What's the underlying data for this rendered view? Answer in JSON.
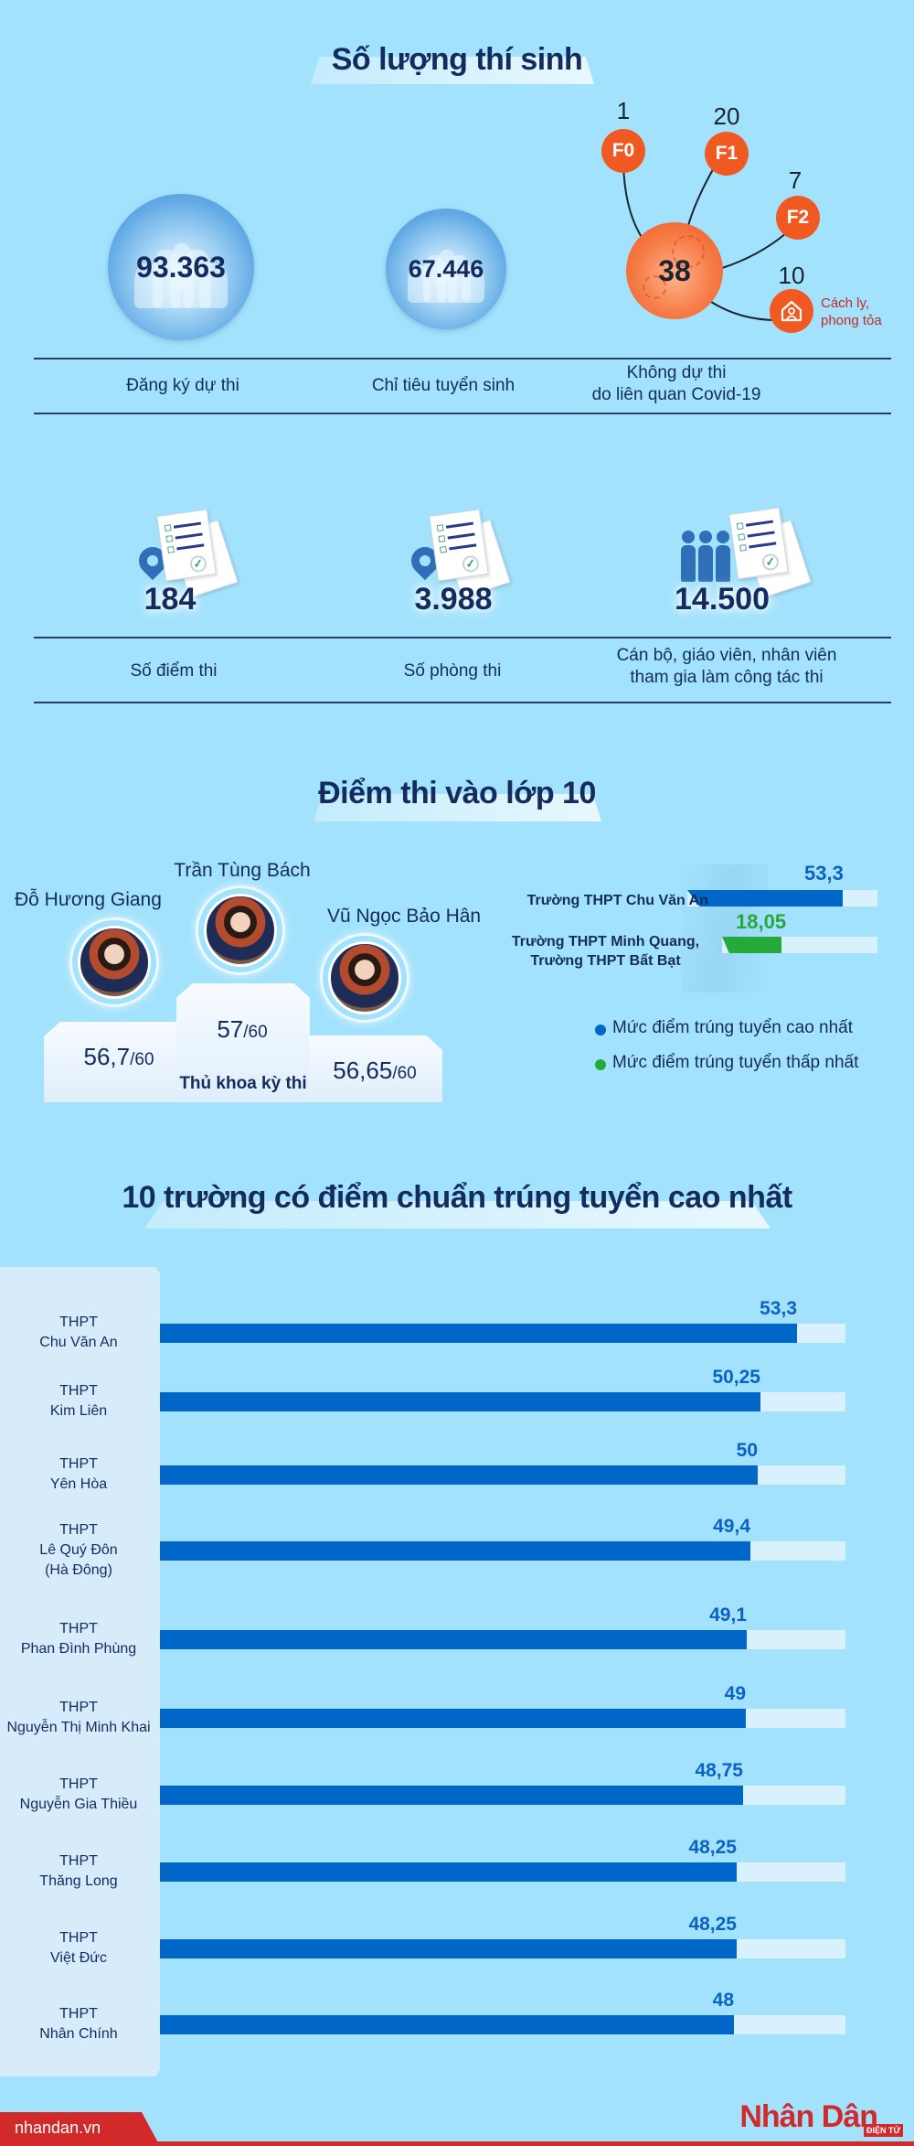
{
  "section1": {
    "title": "Số lượng thí sinh",
    "registered": {
      "value": "93.363",
      "label": "Đăng ký dự thi",
      "icon": "people-group-icon"
    },
    "quota": {
      "value": "67.446",
      "label": "Chỉ tiêu tuyển sinh",
      "icon": "people-group-icon"
    },
    "covid": {
      "total": "38",
      "label_line1": "Không dự thi",
      "label_line2": "do liên quan Covid-19",
      "nodes": [
        {
          "code": "F0",
          "count": "1"
        },
        {
          "code": "F1",
          "count": "20"
        },
        {
          "code": "F2",
          "count": "7"
        },
        {
          "code": "house-icon",
          "count": "10",
          "caption_line1": "Cách ly,",
          "caption_line2": "phong tỏa"
        }
      ],
      "accent": "#f05a22"
    },
    "exam_sites": {
      "value": "184",
      "label": "Số điểm thi",
      "icon": "location-pin-documents-icon"
    },
    "exam_rooms": {
      "value": "3.988",
      "label": "Số phòng thi",
      "icon": "location-pin-documents-icon"
    },
    "staff": {
      "value": "14.500",
      "label_line1": "Cán bộ, giáo viên, nhân viên",
      "label_line2": "tham gia làm công tác thi",
      "icon": "people-documents-icon"
    }
  },
  "section2": {
    "title": "Điểm thi vào lớp 10",
    "podium": {
      "first": {
        "name": "Trần Tùng Bách",
        "score": "57",
        "max": "/60"
      },
      "second": {
        "name": "Đỗ Hương Giang",
        "score": "56,7",
        "max": "/60"
      },
      "third": {
        "name": "Vũ Ngọc Bảo Hân",
        "score": "56,65",
        "max": "/60"
      },
      "caption": "Thủ khoa kỳ thi"
    },
    "range": {
      "highest": {
        "school": "Trường THPT Chu Văn An",
        "value": "53,3",
        "color": "#0066c8"
      },
      "lowest": {
        "school_line1": "Trường THPT Minh Quang,",
        "school_line2": "Trường THPT Bất Bạt",
        "value": "18,05",
        "color": "#26a83a"
      },
      "legend": [
        {
          "label": "Mức điểm trúng tuyển cao nhất",
          "color": "#0066c8"
        },
        {
          "label": "Mức điểm trúng tuyển thấp nhất",
          "color": "#26a83a"
        }
      ]
    }
  },
  "section3": {
    "title": "10 trường có điểm chuẩn trúng tuyển cao nhất"
  },
  "chart_data": {
    "type": "bar",
    "title": "10 trường có điểm chuẩn trúng tuyển cao nhất",
    "orientation": "horizontal",
    "xlabel": "",
    "ylabel": "",
    "xlim": [
      0,
      57
    ],
    "grid": false,
    "categories": [
      "THPT Chu Văn An",
      "THPT Kim Liên",
      "THPT Yên Hòa",
      "THPT Lê Quý Đôn (Hà Đông)",
      "THPT Phan Đình Phùng",
      "THPT Nguyễn Thị Minh Khai",
      "THPT Nguyễn Gia Thiều",
      "THPT Thăng Long",
      "THPT Việt Đức",
      "THPT Nhân Chính"
    ],
    "values": [
      53.3,
      50.25,
      50,
      49.4,
      49.1,
      49,
      48.75,
      48.25,
      48.25,
      48
    ],
    "value_labels": [
      "53,3",
      "50,25",
      "50",
      "49,4",
      "49,1",
      "49",
      "48,75",
      "48,25",
      "48,25",
      "48"
    ],
    "label_lines": [
      [
        "THPT",
        "Chu Văn An"
      ],
      [
        "THPT",
        "Kim Liên"
      ],
      [
        "THPT",
        "Yên Hòa"
      ],
      [
        "THPT",
        "Lê Quý Đôn",
        "(Hà Đông)"
      ],
      [
        "THPT",
        "Phan Đình Phùng"
      ],
      [
        "THPT",
        "Nguyễn Thị Minh Khai"
      ],
      [
        "THPT",
        "Nguyễn Gia Thiều"
      ],
      [
        "THPT",
        "Thăng Long"
      ],
      [
        "THPT",
        "Việt Đức"
      ],
      [
        "THPT",
        "Nhân Chính"
      ]
    ],
    "bar_color": "#0066c8",
    "track_color": "#d9f1fd"
  },
  "footer": {
    "url": "nhandan.vn",
    "brand": "Nhân Dân",
    "brand_sub": "ĐIỆN TỬ",
    "color": "#d22a2b"
  }
}
